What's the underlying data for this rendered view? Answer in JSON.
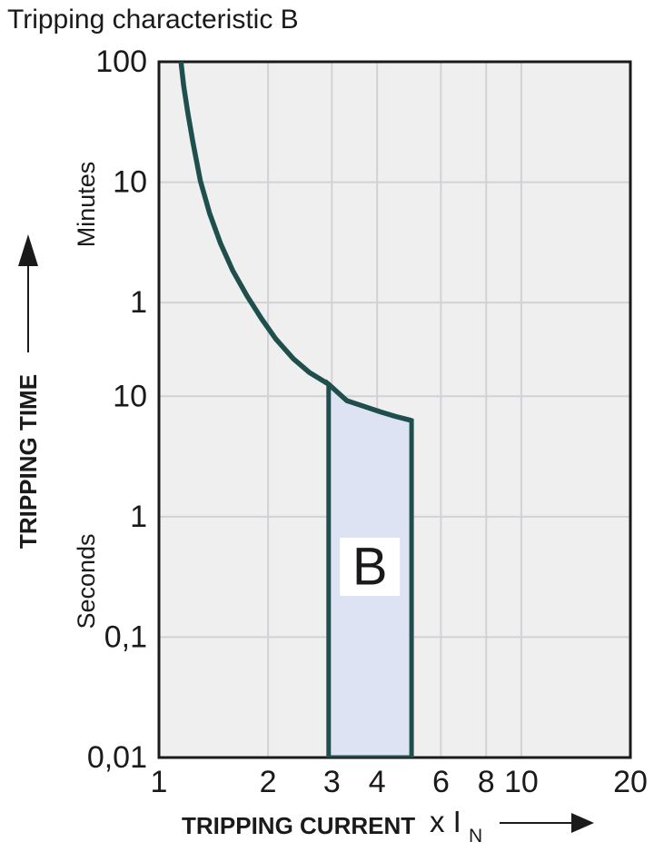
{
  "chart_data": {
    "type": "line",
    "title": "Tripping characteristic B",
    "x_axis": {
      "title": "TRIPPING CURRENT",
      "unit_label": "x I",
      "unit_subscript": "N",
      "scale": "log",
      "range": [
        1,
        20
      ],
      "ticks": [
        "1",
        "2",
        "3",
        "4",
        "6",
        "8",
        "10",
        "20"
      ],
      "tick_values": [
        1,
        2,
        3,
        4,
        6,
        8,
        10,
        20
      ],
      "gridline_values": [
        2,
        3,
        4,
        6,
        8,
        10
      ],
      "arrow_icon": "right-arrow"
    },
    "y_axis": {
      "title": "TRIPPING TIME",
      "scale": "log",
      "unit_upper": "Minutes",
      "unit_lower": "Seconds",
      "range_seconds": [
        0.01,
        6000
      ],
      "ticks": [
        {
          "label": "100",
          "unit": "minutes",
          "value_seconds": 6000
        },
        {
          "label": "10",
          "unit": "minutes",
          "value_seconds": 600
        },
        {
          "label": "1",
          "unit": "minutes",
          "value_seconds": 60
        },
        {
          "label": "10",
          "unit": "seconds",
          "value_seconds": 10
        },
        {
          "label": "1",
          "unit": "seconds",
          "value_seconds": 1
        },
        {
          "label": "0,1",
          "unit": "seconds",
          "value_seconds": 0.1
        },
        {
          "label": "0,01",
          "unit": "seconds",
          "value_seconds": 0.01
        }
      ],
      "gridline_values_seconds": [
        600,
        60,
        10,
        1,
        0.1
      ],
      "arrow_icon": "up-arrow"
    },
    "series": [
      {
        "name": "thermal-tripping-curve-upper-limit",
        "color": "#1f4f4d",
        "points_x_seconds": [
          [
            1.15,
            6000
          ],
          [
            1.17,
            3800
          ],
          [
            1.2,
            2300
          ],
          [
            1.24,
            1300
          ],
          [
            1.3,
            620
          ],
          [
            1.38,
            330
          ],
          [
            1.48,
            185
          ],
          [
            1.6,
            110
          ],
          [
            1.75,
            68
          ],
          [
            1.92,
            44
          ],
          [
            2.1,
            30
          ],
          [
            2.35,
            20.5
          ],
          [
            2.6,
            15.8
          ],
          [
            2.94,
            12.6
          ],
          [
            3.3,
            9.2
          ],
          [
            3.7,
            8.2
          ],
          [
            4.1,
            7.4
          ],
          [
            4.5,
            6.8
          ],
          [
            4.98,
            6.3
          ]
        ]
      }
    ],
    "band": {
      "label": "B",
      "x_range": [
        3,
        5
      ],
      "top_edge_x_seconds": [
        [
          2.94,
          12.6
        ],
        [
          3.3,
          9.2
        ],
        [
          3.7,
          8.2
        ],
        [
          4.1,
          7.4
        ],
        [
          4.5,
          6.8
        ],
        [
          4.98,
          6.3
        ]
      ],
      "bottom_seconds": 0.01,
      "fill": "#dde3f2",
      "border": "#1f4f4d",
      "label_pos_x_seconds": [
        3.82,
        0.384
      ],
      "label_box_fill": "#ffffff"
    },
    "grid": true,
    "legend": false,
    "colors": {
      "plot_background": "#efefef",
      "gridline": "#d2d2d6",
      "plot_border": "#1a1a1a",
      "text": "#1a1a1a",
      "curve": "#1f4f4d"
    }
  }
}
